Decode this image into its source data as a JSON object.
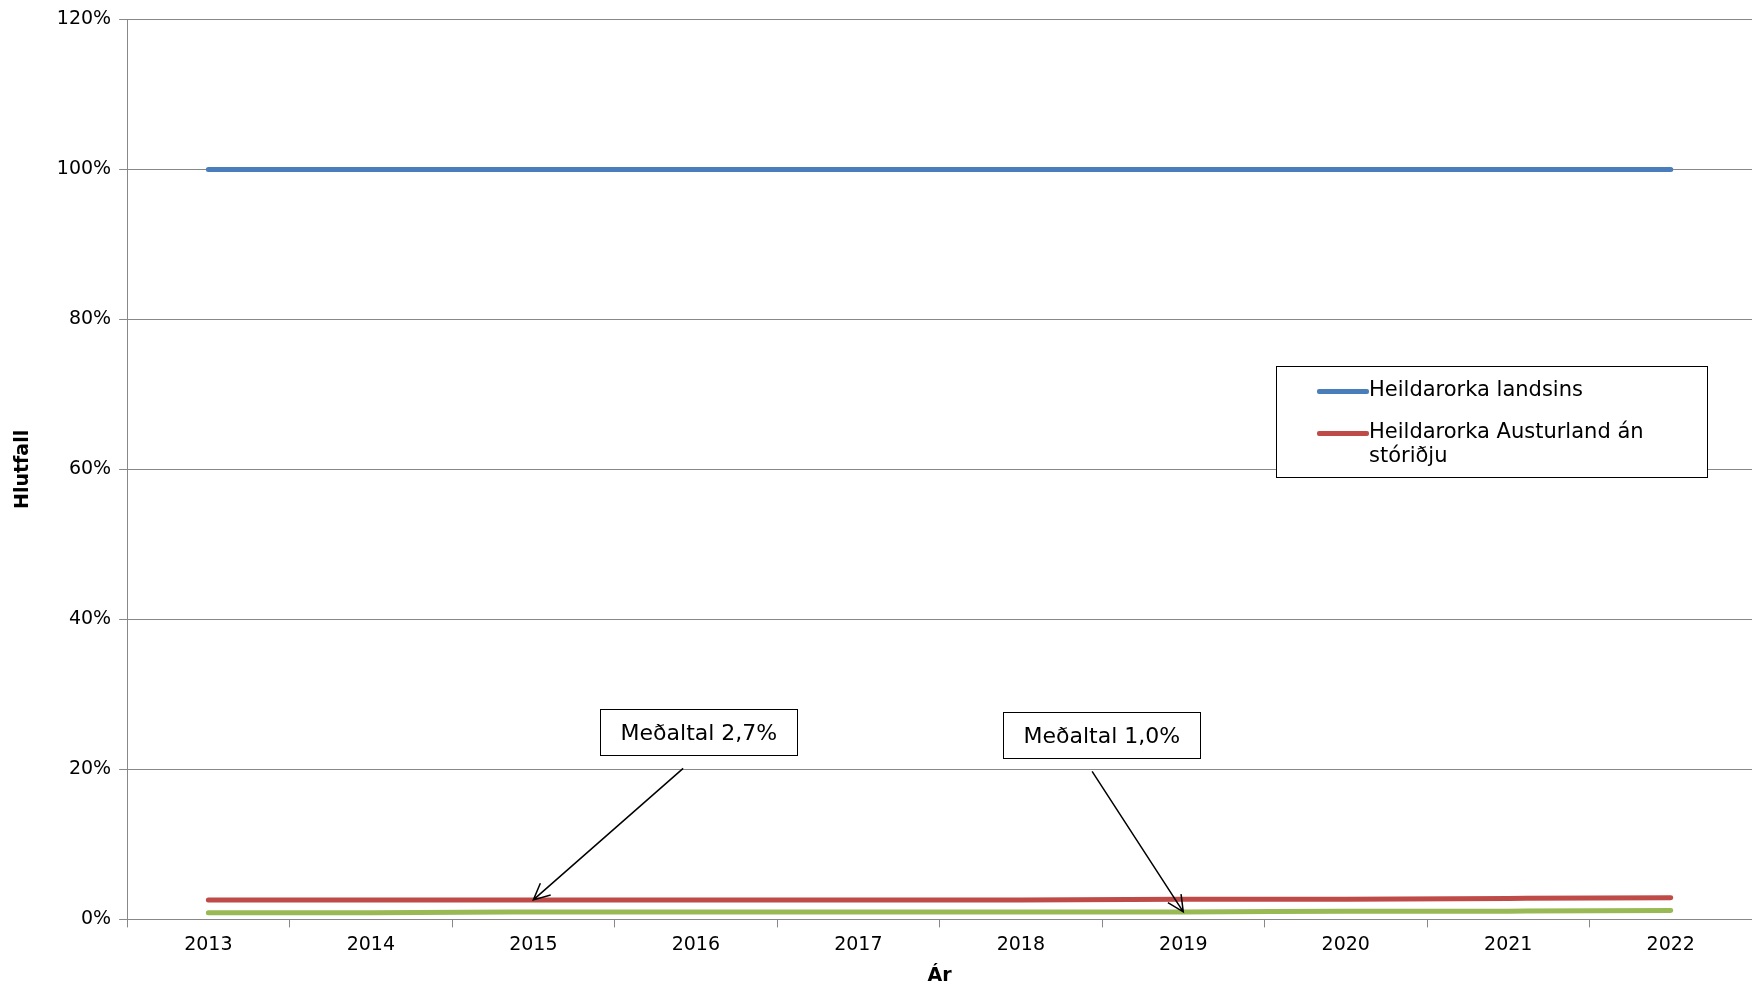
{
  "chart_data": {
    "type": "line",
    "xlabel": "Ár",
    "ylabel": "Hlutfall",
    "categories": [
      "2013",
      "2014",
      "2015",
      "2016",
      "2017",
      "2018",
      "2019",
      "2020",
      "2021",
      "2022"
    ],
    "series": [
      {
        "name": "Heildarorka landsins",
        "color": "#4a7ebb",
        "values": [
          100,
          100,
          100,
          100,
          100,
          100,
          100,
          100,
          100,
          100
        ]
      },
      {
        "name": "Heildarorka Austurland án stóriðju",
        "color": "#be4b48",
        "values": [
          2.6,
          2.6,
          2.6,
          2.6,
          2.6,
          2.6,
          2.7,
          2.7,
          2.8,
          2.9
        ]
      },
      {
        "color": "#98b954",
        "values": [
          0.9,
          0.9,
          1.0,
          1.0,
          1.0,
          1.0,
          1.0,
          1.1,
          1.1,
          1.2
        ]
      }
    ],
    "ylim": [
      0,
      120
    ],
    "yticks": [
      {
        "value": 0,
        "label": "0%"
      },
      {
        "value": 20,
        "label": "20%"
      },
      {
        "value": 40,
        "label": "40%"
      },
      {
        "value": 60,
        "label": "60%"
      },
      {
        "value": 80,
        "label": "80%"
      },
      {
        "value": 100,
        "label": "100%"
      },
      {
        "value": 120,
        "label": "120%"
      }
    ],
    "grid": "y",
    "legend": "right",
    "marker": "none",
    "line_style": "solid",
    "annotations": [
      {
        "text": "Meðaltal 2,7%",
        "x": "2015",
        "y": 2.6
      },
      {
        "text": "Meðaltal 1,0%",
        "x": "2019",
        "y": 1.0
      }
    ]
  }
}
